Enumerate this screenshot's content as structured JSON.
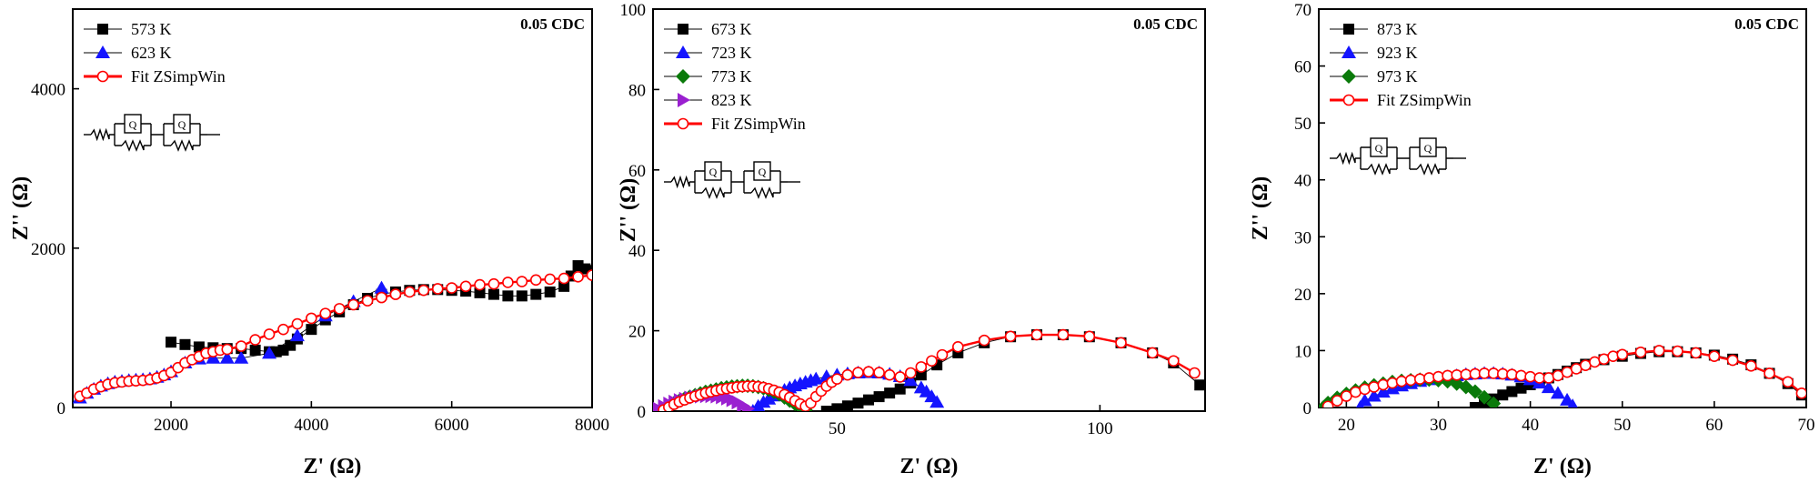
{
  "chart_data": [
    {
      "type": "scatter",
      "annotation": "0.05 CDC",
      "xlabel": "Z' (Ω)",
      "ylabel": "Z'' (Ω)",
      "xlim": [
        600,
        8000
      ],
      "ylim": [
        0,
        5000
      ],
      "xticks": [
        2000,
        4000,
        6000,
        8000
      ],
      "yticks": [
        0,
        2000,
        4000
      ],
      "legend_position": "top-left",
      "series": [
        {
          "name": "573 K",
          "marker": "square",
          "color": "#000000",
          "x": [
            2000,
            2200,
            2400,
            2600,
            2800,
            3000,
            3200,
            3400,
            3500,
            3600,
            3700,
            3800,
            4000,
            4200,
            4400,
            4600,
            4800,
            5000,
            5200,
            5400,
            5600,
            5800,
            6000,
            6200,
            6400,
            6600,
            6800,
            7000,
            7200,
            7400,
            7600,
            7700,
            7800,
            7900,
            8000
          ],
          "y": [
            820,
            790,
            760,
            750,
            740,
            740,
            720,
            700,
            700,
            720,
            780,
            860,
            980,
            1100,
            1200,
            1290,
            1370,
            1420,
            1450,
            1470,
            1480,
            1480,
            1470,
            1460,
            1440,
            1420,
            1400,
            1400,
            1420,
            1450,
            1520,
            1650,
            1780,
            1740,
            1720
          ]
        },
        {
          "name": "623 K",
          "marker": "triangle",
          "color": "#1414ff",
          "x": [
            700,
            800,
            900,
            1000,
            1100,
            1200,
            1300,
            1400,
            1500,
            1600,
            1700,
            1800,
            1900,
            2000,
            2200,
            2400,
            2600,
            2800,
            3000,
            3400,
            3800,
            4200,
            4600,
            5000
          ],
          "y": [
            120,
            180,
            230,
            270,
            300,
            320,
            330,
            340,
            345,
            350,
            360,
            380,
            410,
            450,
            560,
            610,
            620,
            620,
            620,
            680,
            900,
            1150,
            1330,
            1500
          ]
        },
        {
          "name": "Fit ZSimpWin",
          "marker": "circle-open",
          "color": "#ff0000",
          "line": true,
          "x": [
            700,
            800,
            900,
            1000,
            1100,
            1200,
            1300,
            1400,
            1500,
            1600,
            1700,
            1800,
            1900,
            2000,
            2100,
            2200,
            2300,
            2400,
            2500,
            2600,
            2700,
            2800,
            3000,
            3200,
            3400,
            3600,
            3800,
            4000,
            4200,
            4400,
            4600,
            4800,
            5000,
            5200,
            5400,
            5600,
            5800,
            6000,
            6200,
            6400,
            6600,
            6800,
            7000,
            7200,
            7400,
            7600,
            7800,
            8000
          ],
          "y": [
            140,
            180,
            230,
            260,
            290,
            310,
            320,
            330,
            335,
            340,
            350,
            370,
            400,
            440,
            500,
            560,
            600,
            640,
            680,
            700,
            720,
            730,
            770,
            850,
            920,
            980,
            1050,
            1120,
            1180,
            1240,
            1290,
            1340,
            1380,
            1420,
            1450,
            1470,
            1490,
            1500,
            1520,
            1540,
            1550,
            1570,
            1580,
            1600,
            1610,
            1620,
            1640,
            1660
          ]
        }
      ],
      "inset": "equivalent circuit"
    },
    {
      "type": "scatter",
      "annotation": "0.05 CDC",
      "xlabel": "Z' (Ω)",
      "ylabel": "Z'' (Ω)",
      "xlim": [
        15,
        120
      ],
      "ylim": [
        0,
        100
      ],
      "xticks": [
        50,
        100
      ],
      "yticks": [
        0,
        20,
        40,
        60,
        80,
        100
      ],
      "legend_position": "top-left",
      "series": [
        {
          "name": "673 K",
          "marker": "square",
          "color": "#000000",
          "x": [
            48,
            50,
            52,
            54,
            56,
            58,
            60,
            62,
            64,
            66,
            69,
            73,
            78,
            83,
            88,
            93,
            98,
            104,
            110,
            114,
            119
          ],
          "y": [
            0,
            0.6,
            1.3,
            2,
            2.8,
            3.6,
            4.5,
            5.5,
            7,
            9,
            11.5,
            14.5,
            17,
            18.5,
            19,
            19,
            18.5,
            17,
            14.5,
            12,
            6.5
          ]
        },
        {
          "name": "723 K",
          "marker": "triangle",
          "color": "#1414ff",
          "x": [
            34,
            35,
            36,
            37,
            38,
            39,
            40,
            41,
            42,
            43,
            44,
            45,
            46,
            48,
            50,
            52,
            54,
            56,
            58,
            60,
            62,
            64,
            66,
            67,
            68,
            69
          ],
          "y": [
            0,
            1.2,
            2.2,
            3,
            3.8,
            4.5,
            5.2,
            5.8,
            6.3,
            6.8,
            7.2,
            7.6,
            8,
            8.6,
            9,
            9.3,
            9.5,
            9.6,
            9.5,
            9.2,
            8.6,
            7.6,
            5.8,
            4.8,
            3.6,
            2.2
          ]
        },
        {
          "name": "773 K",
          "marker": "diamond",
          "color": "#0a7a0a",
          "x": [
            17,
            18,
            19,
            20,
            21,
            22,
            23,
            24,
            25,
            26,
            27,
            28,
            29,
            30,
            31,
            32,
            33,
            34,
            35,
            36,
            37,
            38,
            39,
            40,
            41,
            42,
            43,
            44
          ],
          "y": [
            0,
            1.2,
            2,
            2.6,
            3.1,
            3.6,
            4,
            4.4,
            4.8,
            5.1,
            5.4,
            5.7,
            5.9,
            6.1,
            6.2,
            6.3,
            6.3,
            6.2,
            6,
            5.7,
            5.3,
            4.8,
            4.2,
            3.4,
            2.6,
            1.8,
            1,
            0.3
          ]
        },
        {
          "name": "823 K",
          "marker": "triangle-right",
          "color": "#9a20d0",
          "x": [
            16,
            17,
            18,
            19,
            20,
            21,
            22,
            23,
            24,
            25,
            26,
            27,
            28,
            29,
            30,
            31,
            32,
            33
          ],
          "y": [
            0.5,
            1.2,
            1.8,
            2.3,
            2.7,
            3,
            3.3,
            3.5,
            3.7,
            3.8,
            3.8,
            3.7,
            3.5,
            3.2,
            2.8,
            2.2,
            1.4,
            0.6
          ]
        },
        {
          "name": "Fit ZSimpWin",
          "marker": "circle-open",
          "color": "#ff0000",
          "line": true,
          "x": [
            17,
            18,
            19,
            20,
            21,
            22,
            23,
            24,
            25,
            26,
            27,
            28,
            29,
            30,
            31,
            32,
            33,
            34,
            35,
            36,
            37,
            38,
            39,
            40,
            41,
            42,
            43,
            44,
            45,
            46,
            47,
            48,
            49,
            50,
            52,
            54,
            56,
            58,
            60,
            62,
            64,
            66,
            68,
            70,
            73,
            78,
            83,
            88,
            93,
            98,
            104,
            110,
            114,
            118
          ],
          "y": [
            0.3,
            1,
            1.7,
            2.3,
            2.8,
            3.3,
            3.7,
            4.1,
            4.5,
            4.8,
            5.1,
            5.4,
            5.6,
            5.8,
            6,
            6.1,
            6.2,
            6.2,
            6.1,
            5.9,
            5.6,
            5.2,
            4.7,
            4.1,
            3.4,
            2.6,
            1.8,
            1.2,
            2,
            3.6,
            5,
            6.2,
            7.2,
            8,
            9,
            9.6,
            9.8,
            9.6,
            9,
            8.5,
            9.5,
            11,
            12.5,
            14,
            16,
            17.6,
            18.6,
            19,
            19,
            18.6,
            17,
            14.5,
            12.5,
            9.5
          ]
        }
      ],
      "inset": "equivalent circuit"
    },
    {
      "type": "scatter",
      "annotation": "0.05 CDC",
      "xlabel": "Z' (Ω)",
      "ylabel": "Z'' (Ω)",
      "xlim": [
        17,
        70
      ],
      "ylim": [
        0,
        70
      ],
      "xticks": [
        20,
        30,
        40,
        50,
        60,
        70
      ],
      "yticks": [
        0,
        10,
        20,
        30,
        40,
        50,
        60,
        70
      ],
      "legend_position": "top-left",
      "series": [
        {
          "name": "873 K",
          "marker": "square",
          "color": "#000000",
          "x": [
            34,
            35,
            36,
            37,
            38,
            39,
            40,
            41,
            42,
            43,
            44,
            45,
            46,
            48,
            50,
            52,
            54,
            56,
            58,
            60,
            62,
            64,
            66,
            68,
            69.5
          ],
          "y": [
            0,
            0.8,
            1.5,
            2.2,
            2.8,
            3.4,
            4,
            4.6,
            5.2,
            5.8,
            6.4,
            7,
            7.6,
            8.4,
            9,
            9.5,
            9.8,
            9.8,
            9.6,
            9.2,
            8.5,
            7.5,
            6,
            4.2,
            2.2
          ]
        },
        {
          "name": "923 K",
          "marker": "triangle",
          "color": "#1414ff",
          "x": [
            21.5,
            22,
            23,
            24,
            25,
            26,
            27,
            28,
            29,
            30,
            31,
            32,
            33,
            34,
            35,
            36,
            37,
            38,
            39,
            40,
            41,
            42,
            43,
            44,
            44.6
          ],
          "y": [
            0,
            1.2,
            2,
            2.7,
            3.3,
            3.8,
            4.2,
            4.6,
            4.9,
            5.2,
            5.4,
            5.6,
            5.8,
            5.9,
            6,
            6,
            5.9,
            5.7,
            5.4,
            4.9,
            4.3,
            3.5,
            2.5,
            1.3,
            0.3
          ]
        },
        {
          "name": "973 K",
          "marker": "diamond",
          "color": "#0a7a0a",
          "x": [
            17.5,
            18,
            19,
            20,
            21,
            22,
            23,
            24,
            25,
            26,
            27,
            28,
            29,
            30,
            31,
            32,
            33,
            34,
            35,
            36
          ],
          "y": [
            0,
            0.8,
            1.7,
            2.4,
            3,
            3.5,
            3.9,
            4.2,
            4.5,
            4.7,
            4.8,
            4.9,
            4.9,
            4.8,
            4.6,
            4.2,
            3.6,
            2.8,
            1.8,
            0.7
          ]
        },
        {
          "name": "Fit ZSimpWin",
          "marker": "circle-open",
          "color": "#ff0000",
          "line": true,
          "x": [
            18,
            19,
            20,
            21,
            22,
            23,
            24,
            25,
            26,
            27,
            28,
            29,
            30,
            31,
            32,
            33,
            34,
            35,
            36,
            37,
            38,
            39,
            40,
            41,
            42,
            43,
            44,
            45,
            46,
            47,
            48,
            49,
            50,
            52,
            54,
            56,
            58,
            60,
            62,
            64,
            66,
            68,
            69.5
          ],
          "y": [
            0.2,
            1.2,
            2,
            2.7,
            3.2,
            3.6,
            4,
            4.3,
            4.6,
            4.8,
            5,
            5.2,
            5.4,
            5.6,
            5.7,
            5.8,
            5.9,
            6,
            6,
            5.9,
            5.8,
            5.6,
            5.4,
            5.2,
            5.2,
            5.6,
            6.2,
            6.8,
            7.4,
            8,
            8.5,
            9,
            9.3,
            9.7,
            10,
            9.9,
            9.6,
            9,
            8.3,
            7.3,
            6,
            4.5,
            2.5
          ]
        }
      ],
      "inset": "equivalent circuit"
    }
  ]
}
